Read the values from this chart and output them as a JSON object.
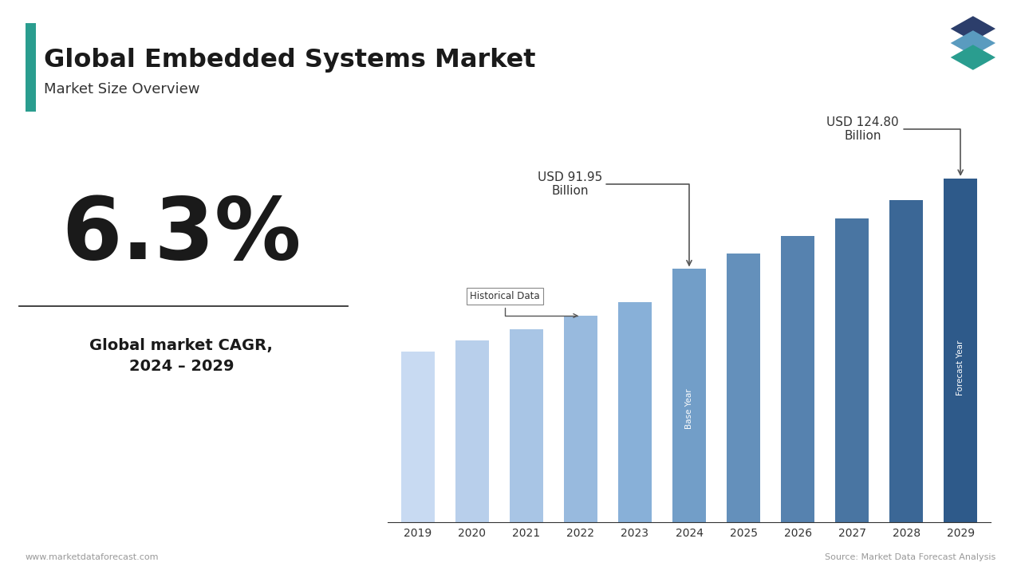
{
  "title": "Global Embedded Systems Market",
  "subtitle": "Market Size Overview",
  "cagr": "6.3%",
  "cagr_label": "Global market CAGR,\n2024 – 2029",
  "years": [
    2019,
    2020,
    2021,
    2022,
    2023,
    2024,
    2025,
    2026,
    2027,
    2028,
    2029
  ],
  "values": [
    62,
    66,
    70,
    75,
    80,
    91.95,
    97.7,
    103.9,
    110.4,
    117.0,
    124.8
  ],
  "base_year": 2024,
  "forecast_year": 2029,
  "annotation_2024_label": "USD 91.95\nBillion",
  "annotation_2029_label": "USD 124.80\nBillion",
  "historical_box_label": "Historical Data",
  "base_year_label": "Base Year",
  "forecast_year_label": "Forecast Year",
  "website": "www.marketdataforecast.com",
  "source": "Source: Market Data Forecast Analysis",
  "teal_color": "#2a9d8f",
  "background_color": "#ffffff",
  "ylim": [
    0,
    150
  ]
}
